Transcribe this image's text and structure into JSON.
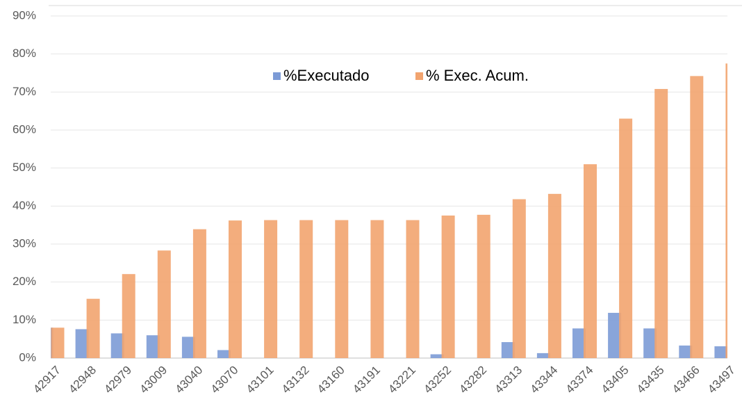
{
  "chart_data": {
    "type": "bar",
    "categories": [
      "42917",
      "42948",
      "42979",
      "43009",
      "43040",
      "43070",
      "43101",
      "43132",
      "43160",
      "43191",
      "43221",
      "43252",
      "43282",
      "43313",
      "43344",
      "43374",
      "43405",
      "43435",
      "43466",
      "43497"
    ],
    "series": [
      {
        "name": "%Executado",
        "color": "#7c9bd6",
        "values": [
          8.0,
          7.6,
          6.5,
          6.0,
          5.6,
          2.1,
          0,
          0,
          0,
          0,
          0,
          1.0,
          0,
          4.2,
          1.3,
          7.8,
          11.9,
          7.8,
          3.3,
          3.1
        ]
      },
      {
        "name": "% Exec. Acum.",
        "color": "#f2a46f",
        "values": [
          8.0,
          15.6,
          22.1,
          28.3,
          33.9,
          36.2,
          36.3,
          36.3,
          36.3,
          36.3,
          36.3,
          37.5,
          37.7,
          41.8,
          43.2,
          51.0,
          63.0,
          70.8,
          74.2,
          77.5
        ]
      }
    ],
    "ylim": [
      0,
      90
    ],
    "yticks": [
      {
        "value": 0,
        "label": "0%"
      },
      {
        "value": 10,
        "label": "10%"
      },
      {
        "value": 20,
        "label": "20%"
      },
      {
        "value": 30,
        "label": "30%"
      },
      {
        "value": 40,
        "label": "40%"
      },
      {
        "value": 50,
        "label": "50%"
      },
      {
        "value": 60,
        "label": "60%"
      },
      {
        "value": 70,
        "label": "70%"
      },
      {
        "value": 80,
        "label": "80%"
      },
      {
        "value": 90,
        "label": "90%"
      }
    ],
    "grid": true,
    "legend": "top"
  }
}
